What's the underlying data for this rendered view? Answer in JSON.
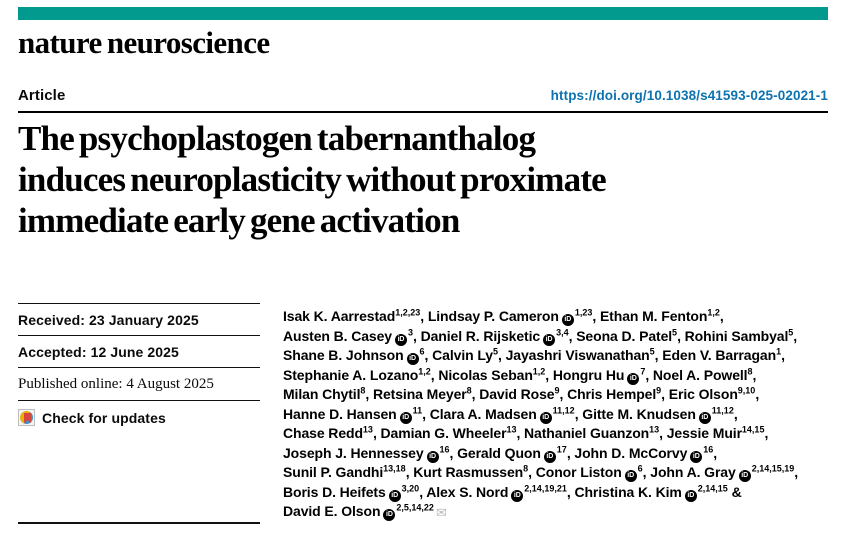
{
  "colors": {
    "brand_teal": "#029a8e",
    "link_blue": "#0d73b0"
  },
  "masthead": {
    "journal": "nature neuroscience"
  },
  "header": {
    "article_label": "Article",
    "doi": "https://doi.org/10.1038/s41593-025-02021-1"
  },
  "title_lines": [
    "The psychoplastogen tabernanthalog",
    "induces neuroplasticity without proximate",
    "immediate early gene activation"
  ],
  "meta": {
    "received": "Received: 23 January 2025",
    "accepted": "Accepted: 12 June 2025",
    "published": "Published online: 4 August 2025",
    "check_updates": "Check for updates"
  },
  "authors": [
    {
      "name": "Isak K. Aarrestad",
      "orcid": false,
      "sup": "1,2,23"
    },
    {
      "name": "Lindsay P. Cameron",
      "orcid": true,
      "sup": "1,23"
    },
    {
      "name": "Ethan M. Fenton",
      "orcid": false,
      "sup": "1,2"
    },
    {
      "name": "Austen B. Casey",
      "orcid": true,
      "sup": "3"
    },
    {
      "name": "Daniel R. Rijsketic",
      "orcid": true,
      "sup": "3,4"
    },
    {
      "name": "Seona D. Patel",
      "orcid": false,
      "sup": "5"
    },
    {
      "name": "Rohini Sambyal",
      "orcid": false,
      "sup": "5"
    },
    {
      "name": "Shane B. Johnson",
      "orcid": true,
      "sup": "6"
    },
    {
      "name": "Calvin Ly",
      "orcid": false,
      "sup": "5"
    },
    {
      "name": "Jayashri Viswanathan",
      "orcid": false,
      "sup": "5"
    },
    {
      "name": "Eden V. Barragan",
      "orcid": false,
      "sup": "1"
    },
    {
      "name": "Stephanie A. Lozano",
      "orcid": false,
      "sup": "1,2"
    },
    {
      "name": "Nicolas Seban",
      "orcid": false,
      "sup": "1,2"
    },
    {
      "name": "Hongru Hu",
      "orcid": true,
      "sup": "7"
    },
    {
      "name": "Noel A. Powell",
      "orcid": false,
      "sup": "8"
    },
    {
      "name": "Milan Chytil",
      "orcid": false,
      "sup": "8"
    },
    {
      "name": "Retsina Meyer",
      "orcid": false,
      "sup": "8"
    },
    {
      "name": "David Rose",
      "orcid": false,
      "sup": "9"
    },
    {
      "name": "Chris Hempel",
      "orcid": false,
      "sup": "9"
    },
    {
      "name": "Eric Olson",
      "orcid": false,
      "sup": "9,10"
    },
    {
      "name": "Hanne D. Hansen",
      "orcid": true,
      "sup": "11"
    },
    {
      "name": "Clara A. Madsen",
      "orcid": true,
      "sup": "11,12"
    },
    {
      "name": "Gitte M. Knudsen",
      "orcid": true,
      "sup": "11,12"
    },
    {
      "name": "Chase Redd",
      "orcid": false,
      "sup": "13"
    },
    {
      "name": "Damian G. Wheeler",
      "orcid": false,
      "sup": "13"
    },
    {
      "name": "Nathaniel Guanzon",
      "orcid": false,
      "sup": "13"
    },
    {
      "name": "Jessie Muir",
      "orcid": false,
      "sup": "14,15"
    },
    {
      "name": "Joseph J. Hennessey",
      "orcid": true,
      "sup": "16"
    },
    {
      "name": "Gerald Quon",
      "orcid": true,
      "sup": "17"
    },
    {
      "name": "John D. McCorvy",
      "orcid": true,
      "sup": "16"
    },
    {
      "name": "Sunil P. Gandhi",
      "orcid": false,
      "sup": "13,18"
    },
    {
      "name": "Kurt Rasmussen",
      "orcid": false,
      "sup": "8"
    },
    {
      "name": "Conor Liston",
      "orcid": true,
      "sup": "6"
    },
    {
      "name": "John A. Gray",
      "orcid": true,
      "sup": "2,14,15,19"
    },
    {
      "name": "Boris D. Heifets",
      "orcid": true,
      "sup": "3,20"
    },
    {
      "name": "Alex S. Nord",
      "orcid": true,
      "sup": "2,14,19,21"
    },
    {
      "name": "Christina K. Kim",
      "orcid": true,
      "sup": "2,14,15"
    },
    {
      "name": "David E. Olson",
      "orcid": true,
      "sup": "2,5,14,22",
      "email": true
    }
  ],
  "icons": {
    "orcid_label": "iD",
    "email_glyph": "✉",
    "crossmark": "crossmark-icon"
  }
}
